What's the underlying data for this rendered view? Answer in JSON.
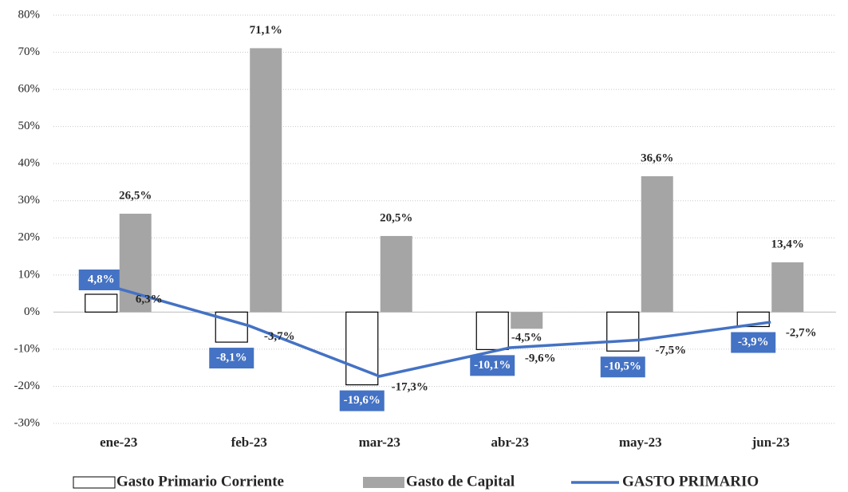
{
  "chart_data": {
    "type": "bar",
    "categories": [
      "ene-23",
      "feb-23",
      "mar-23",
      "abr-23",
      "may-23",
      "jun-23"
    ],
    "series": [
      {
        "name": "Gasto Primario Corriente",
        "type": "bar",
        "color": "#ffffff",
        "stroke": "#000000",
        "values": [
          4.8,
          -8.1,
          -19.6,
          -10.1,
          -10.5,
          -3.9
        ],
        "value_labels": [
          "4,8%",
          "-8,1%",
          "-19,6%",
          "-10,1%",
          "-10,5%",
          "-3,9%"
        ]
      },
      {
        "name": "Gasto de Capital",
        "type": "bar",
        "color": "#a5a5a5",
        "values": [
          26.5,
          71.1,
          20.5,
          -4.5,
          36.6,
          13.4
        ],
        "value_labels": [
          "26,5%",
          "71,1%",
          "20,5%",
          "-4,5%",
          "36,6%",
          "13,4%"
        ]
      },
      {
        "name": "GASTO PRIMARIO",
        "type": "line",
        "color": "#4472c4",
        "values": [
          6.3,
          -3.7,
          -17.3,
          -9.6,
          -7.5,
          -2.7
        ],
        "value_labels": [
          "6,3%",
          "-3,7%",
          "-17,3%",
          "-9,6%",
          "-7,5%",
          "-2,7%"
        ]
      }
    ],
    "ylim": [
      -30,
      80
    ],
    "yticks": [
      {
        "value": -30,
        "label": "-30%"
      },
      {
        "value": -20,
        "label": "-20%"
      },
      {
        "value": -10,
        "label": "-10%"
      },
      {
        "value": 0,
        "label": "0%"
      },
      {
        "value": 10,
        "label": "10%"
      },
      {
        "value": 20,
        "label": "20%"
      },
      {
        "value": 30,
        "label": "30%"
      },
      {
        "value": 40,
        "label": "40%"
      },
      {
        "value": 50,
        "label": "50%"
      },
      {
        "value": 60,
        "label": "60%"
      },
      {
        "value": 70,
        "label": "70%"
      },
      {
        "value": 80,
        "label": "80%"
      }
    ],
    "grid": true,
    "legend": "bottom"
  }
}
